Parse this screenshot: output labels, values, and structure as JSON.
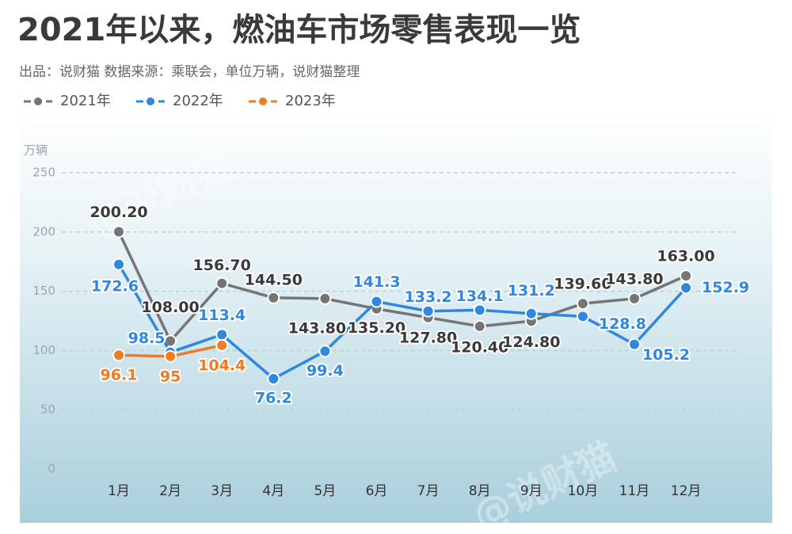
{
  "chart_data": {
    "type": "line",
    "title": "2021年以来，燃油车市场零售表现一览",
    "subtitle": "出品：说财猫   数据来源：乘联会，单位万辆，说财猫整理",
    "y_axis_label": "万辆",
    "watermark": "@说财猫",
    "categories": [
      "1月",
      "2月",
      "3月",
      "4月",
      "5月",
      "6月",
      "7月",
      "8月",
      "9月",
      "10月",
      "11月",
      "12月"
    ],
    "ylim": [
      0,
      250
    ],
    "yticks": [
      0,
      50,
      100,
      150,
      200,
      250
    ],
    "grid": true,
    "legend": "top-left",
    "series": [
      {
        "name": "2021年",
        "color": "#757575",
        "values": [
          200.2,
          108.0,
          156.7,
          144.5,
          143.8,
          135.2,
          127.8,
          120.4,
          124.8,
          139.6,
          143.8,
          163.0
        ],
        "value_labels": [
          "200.20",
          "108.00",
          "156.70",
          "144.50",
          "143.80",
          "135.20",
          "127.80",
          "120.40",
          "124.80",
          "139.60",
          "143.80",
          "163.00"
        ]
      },
      {
        "name": "2022年",
        "color": "#2f87e0",
        "values": [
          172.6,
          98.5,
          113.4,
          76.2,
          99.4,
          141.3,
          133.2,
          134.1,
          131.2,
          128.8,
          105.2,
          152.9
        ]
      },
      {
        "name": "2023年",
        "color": "#ec7c26",
        "values": [
          96.1,
          95,
          104.4,
          null,
          null,
          null,
          null,
          null,
          null,
          null,
          null,
          null
        ]
      }
    ]
  }
}
